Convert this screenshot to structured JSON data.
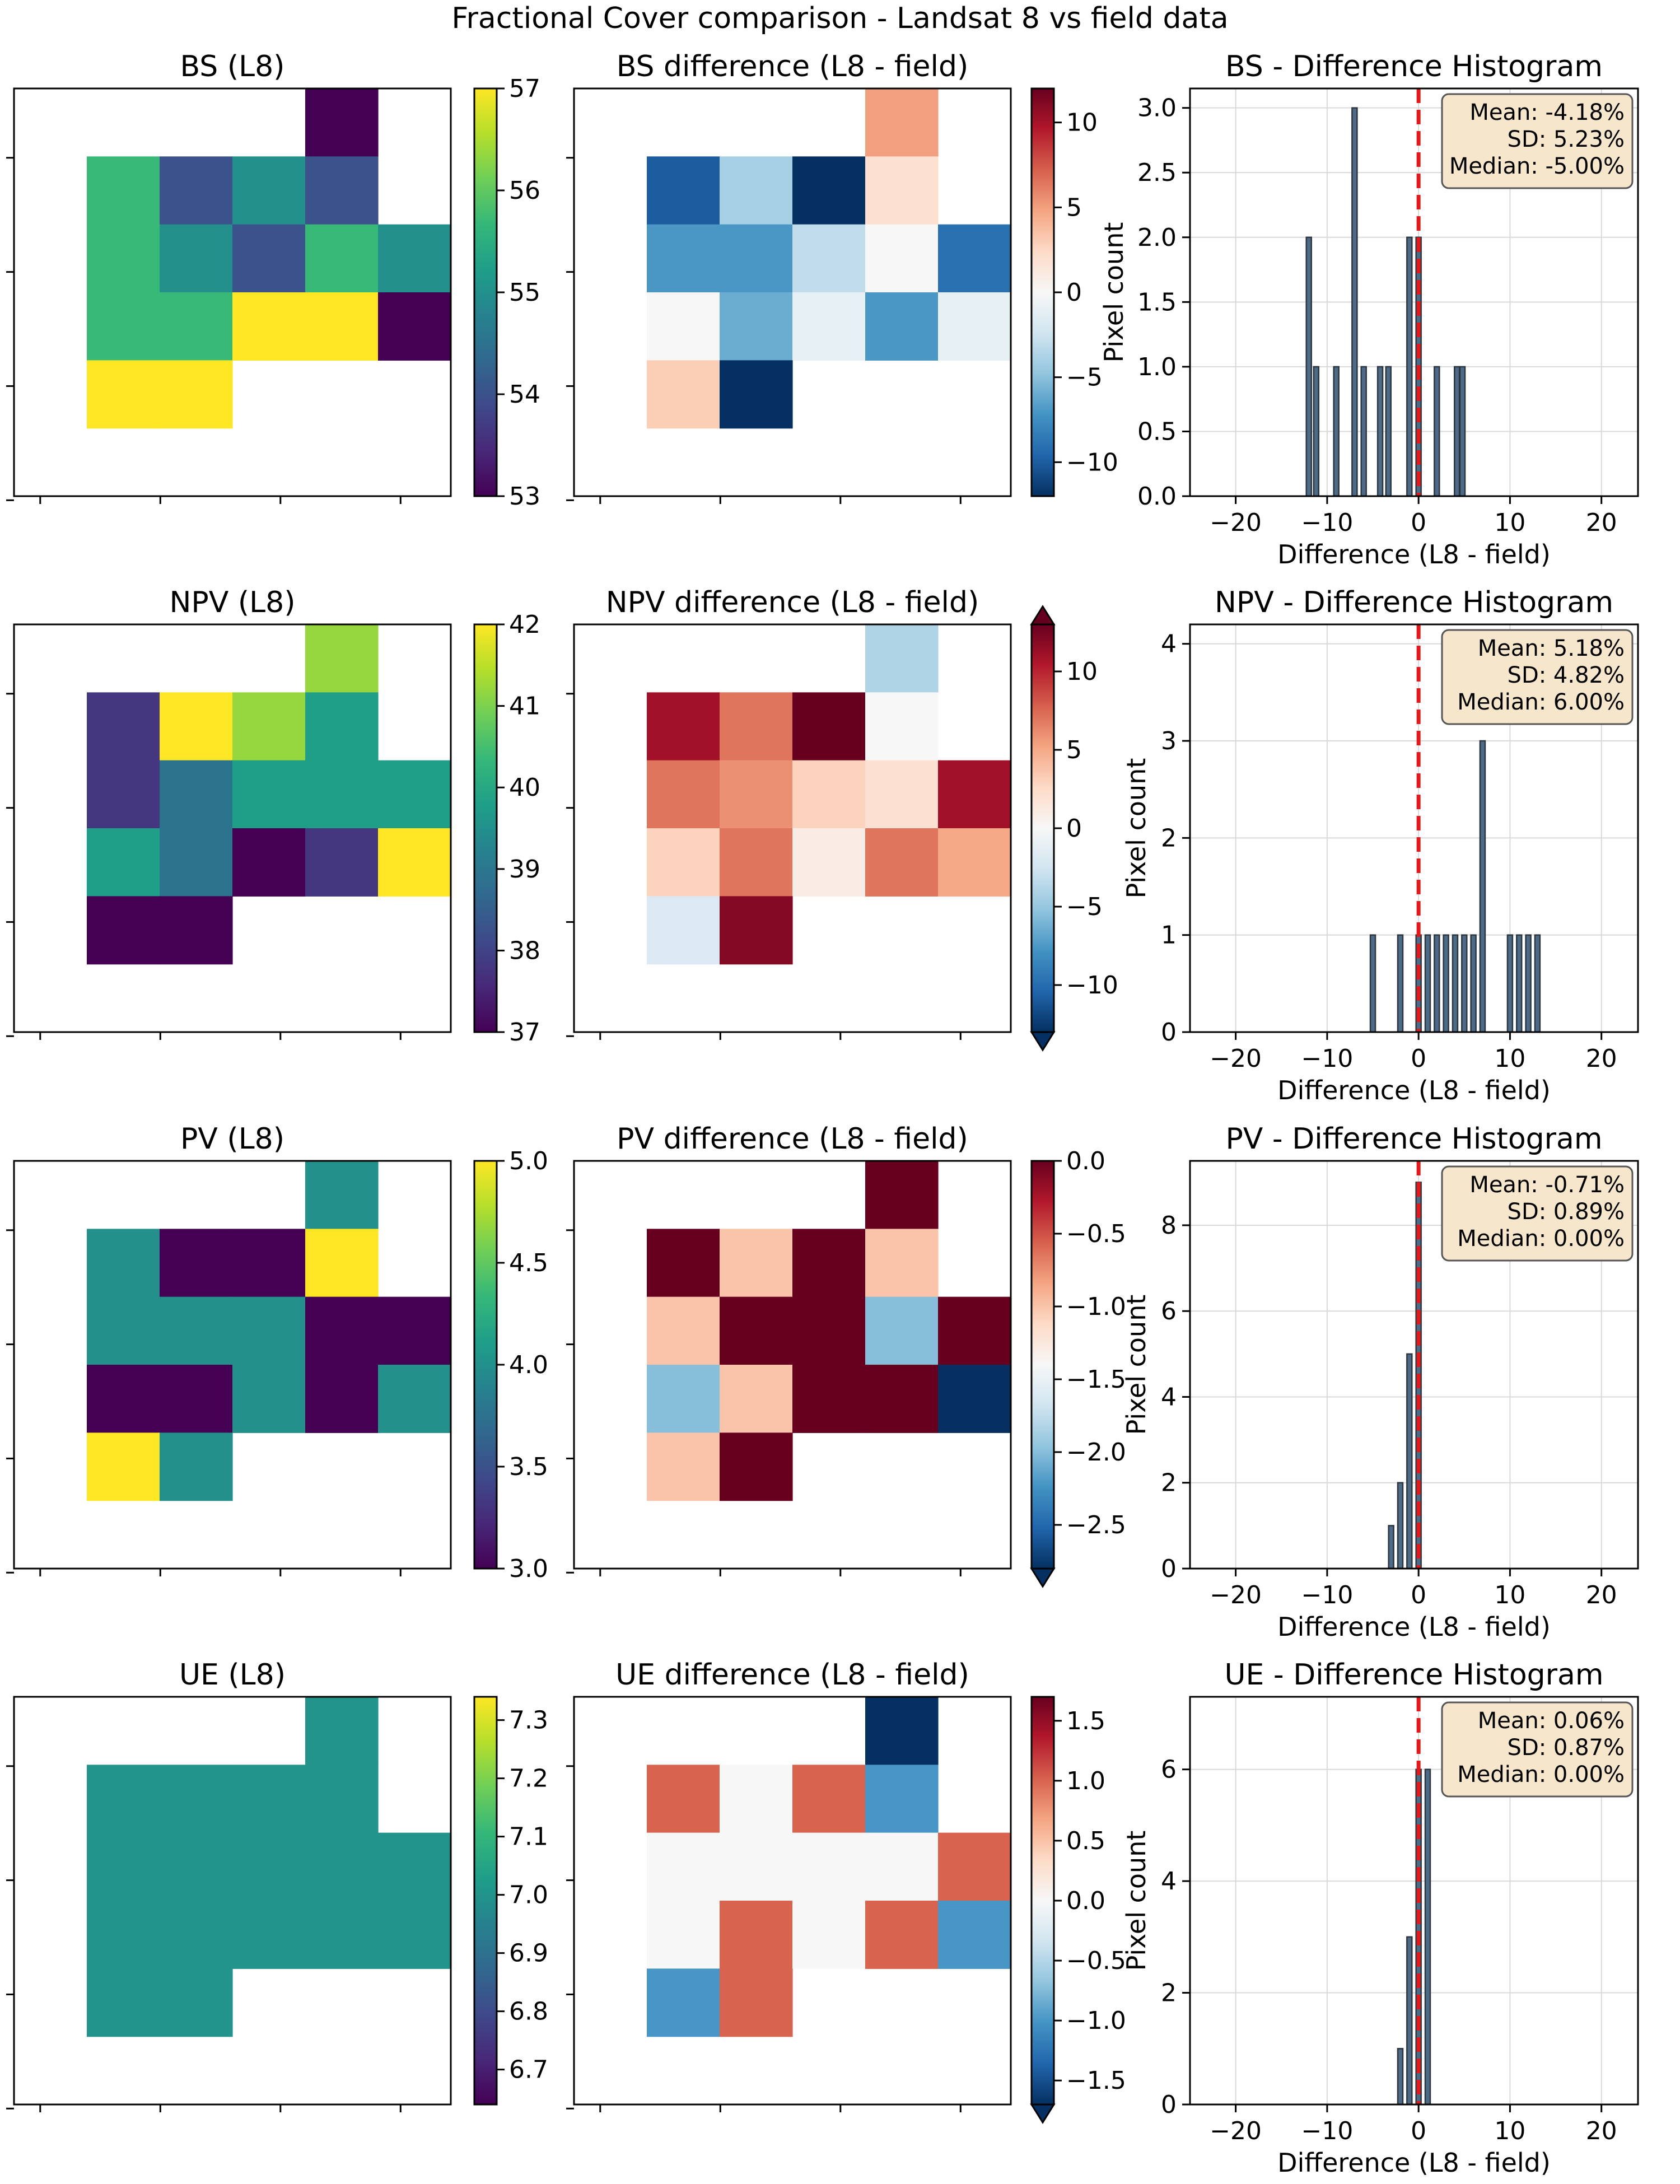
{
  "figure_title": "Fractional Cover comparison - Landsat 8 vs field data",
  "colormaps": {
    "viridis": [
      "#440154",
      "#482878",
      "#3e4a89",
      "#31688e",
      "#26828e",
      "#1f9e89",
      "#35b779",
      "#6ece58",
      "#b5de2b",
      "#fde725"
    ],
    "rdbu_r": [
      "#053061",
      "#2166ac",
      "#4393c3",
      "#92c5de",
      "#d1e5f0",
      "#f7f7f7",
      "#fddbc7",
      "#f4a582",
      "#d6604d",
      "#b2182b",
      "#67001f"
    ],
    "mean_line": "#e31a1c",
    "bar_edge": "#2b3640",
    "stats_box_fill": "#f5e6cc"
  },
  "chart_data": [
    {
      "type": "heatmap",
      "panel": "BS-map",
      "title": "BS (L8)",
      "colormap": "viridis",
      "vmin": 53,
      "vmax": 57,
      "colorbar_ticks": [
        "53",
        "54",
        "55",
        "56",
        "57"
      ],
      "extend": "neither",
      "grid": [
        [
          null,
          null,
          null,
          53,
          null
        ],
        [
          55.7,
          54,
          55,
          54,
          null
        ],
        [
          55.7,
          55,
          54,
          55.7,
          55
        ],
        [
          55.7,
          55.7,
          57,
          57,
          53
        ],
        [
          57,
          57,
          null,
          null,
          null
        ]
      ]
    },
    {
      "type": "heatmap",
      "panel": "BS-diff",
      "title": "BS difference (L8 - field)",
      "colormap": "RdBu_r",
      "vmin": -12,
      "vmax": 12,
      "colorbar_ticks": [
        "−10",
        "−5",
        "0",
        "5",
        "10"
      ],
      "extend": "neither",
      "grid": [
        [
          null,
          null,
          null,
          5,
          null
        ],
        [
          -10,
          -4,
          -12,
          2,
          null
        ],
        [
          -7,
          -7,
          -3,
          0,
          -9
        ],
        [
          0,
          -6,
          -1,
          -7,
          -1
        ],
        [
          3,
          -12,
          null,
          null,
          null
        ]
      ]
    },
    {
      "type": "bar",
      "panel": "BS-hist",
      "title": "BS - Difference Histogram",
      "xlabel": "Difference (L8 - field)",
      "ylabel": "Pixel count",
      "xlim": [
        -25,
        24
      ],
      "ylim": [
        0,
        3.15
      ],
      "xticks": [
        "−20",
        "−10",
        "0",
        "10",
        "20"
      ],
      "yticks": [
        "0.0",
        "0.5",
        "1.0",
        "1.5",
        "2.0",
        "2.5",
        "3.0"
      ],
      "bin_centers": [
        -12,
        -11.2,
        -9,
        -7,
        -6,
        -4.2,
        -3.3,
        -1,
        0,
        2,
        4.2,
        4.8
      ],
      "counts": [
        2,
        1,
        1,
        3,
        1,
        1,
        1,
        2,
        2,
        1,
        1,
        1
      ],
      "mean_line_x": 0,
      "stats": [
        "Mean: -4.18%",
        "SD: 5.23%",
        "Median: -5.00%"
      ]
    },
    {
      "type": "heatmap",
      "panel": "NPV-map",
      "title": "NPV (L8)",
      "colormap": "viridis",
      "vmin": 37,
      "vmax": 42,
      "colorbar_ticks": [
        "37",
        "38",
        "39",
        "40",
        "41",
        "42"
      ],
      "extend": "neither",
      "grid": [
        [
          null,
          null,
          null,
          41.2,
          null
        ],
        [
          37.8,
          42,
          41.2,
          39.8,
          null
        ],
        [
          37.8,
          38.9,
          39.8,
          39.8,
          39.8
        ],
        [
          39.8,
          38.9,
          37,
          37.8,
          42
        ],
        [
          37,
          37,
          null,
          null,
          null
        ]
      ]
    },
    {
      "type": "heatmap",
      "panel": "NPV-diff",
      "title": "NPV difference (L8 - field)",
      "colormap": "RdBu_r",
      "vmin": -13,
      "vmax": 13,
      "colorbar_ticks": [
        "−10",
        "−5",
        "0",
        "5",
        "10"
      ],
      "extend": "both",
      "grid": [
        [
          null,
          null,
          null,
          -4,
          null
        ],
        [
          11,
          7,
          13,
          0,
          null
        ],
        [
          7,
          6,
          3,
          2,
          11
        ],
        [
          3,
          7,
          1,
          7,
          5
        ],
        [
          -2,
          12,
          null,
          null,
          null
        ]
      ]
    },
    {
      "type": "bar",
      "panel": "NPV-hist",
      "title": "NPV - Difference Histogram",
      "xlabel": "Difference (L8 - field)",
      "ylabel": "Pixel count",
      "xlim": [
        -25,
        24
      ],
      "ylim": [
        0,
        4.2
      ],
      "xticks": [
        "−20",
        "−10",
        "0",
        "10",
        "20"
      ],
      "yticks": [
        "0",
        "1",
        "2",
        "3",
        "4"
      ],
      "bin_centers": [
        -5,
        -2,
        0,
        1,
        2,
        3,
        4,
        5,
        6,
        7,
        10,
        11,
        12,
        13
      ],
      "counts": [
        1,
        1,
        1,
        1,
        1,
        1,
        1,
        1,
        1,
        3,
        1,
        1,
        1,
        1
      ],
      "mean_line_x": 0,
      "stats": [
        "Mean: 5.18%",
        "SD: 4.82%",
        "Median: 6.00%"
      ]
    },
    {
      "type": "heatmap",
      "panel": "PV-map",
      "title": "PV (L8)",
      "colormap": "viridis",
      "vmin": 3.0,
      "vmax": 5.0,
      "colorbar_ticks": [
        "3.0",
        "3.5",
        "4.0",
        "4.5",
        "5.0"
      ],
      "extend": "neither",
      "grid": [
        [
          null,
          null,
          null,
          4,
          null
        ],
        [
          4,
          3,
          3,
          5,
          null
        ],
        [
          4,
          4,
          4,
          3,
          3
        ],
        [
          3,
          3,
          4,
          3,
          4
        ],
        [
          5,
          4,
          null,
          null,
          null
        ]
      ]
    },
    {
      "type": "heatmap",
      "panel": "PV-diff",
      "title": "PV difference (L8 - field)",
      "colormap": "RdBu_r",
      "vmin": -2.8,
      "vmax": 0,
      "colorbar_ticks": [
        "−2.5",
        "−2.0",
        "−1.5",
        "−1.0",
        "−0.5",
        "0.0"
      ],
      "extend": "min",
      "grid": [
        [
          null,
          null,
          null,
          0,
          null
        ],
        [
          0,
          -1,
          0,
          -1,
          null
        ],
        [
          -1,
          0,
          0,
          -2,
          0
        ],
        [
          -2,
          -1,
          0,
          0,
          -3
        ],
        [
          -1,
          0,
          null,
          null,
          null
        ]
      ]
    },
    {
      "type": "bar",
      "panel": "PV-hist",
      "title": "PV - Difference Histogram",
      "xlabel": "Difference (L8 - field)",
      "ylabel": "Pixel count",
      "xlim": [
        -25,
        24
      ],
      "ylim": [
        0,
        9.5
      ],
      "xticks": [
        "−20",
        "−10",
        "0",
        "10",
        "20"
      ],
      "yticks": [
        "0",
        "2",
        "4",
        "6",
        "8"
      ],
      "bin_centers": [
        -3,
        -2,
        -1,
        0
      ],
      "counts": [
        1,
        2,
        5,
        9
      ],
      "mean_line_x": 0,
      "stats": [
        "Mean: -0.71%",
        "SD: 0.89%",
        "Median: 0.00%"
      ]
    },
    {
      "type": "heatmap",
      "panel": "UE-map",
      "title": "UE (L8)",
      "colormap": "viridis",
      "vmin": 6.64,
      "vmax": 7.34,
      "colorbar_ticks": [
        "6.7",
        "6.8",
        "6.9",
        "7.0",
        "7.1",
        "7.2",
        "7.3"
      ],
      "extend": "neither",
      "grid": [
        [
          null,
          null,
          null,
          7,
          null
        ],
        [
          7,
          7,
          7,
          7,
          null
        ],
        [
          7,
          7,
          7,
          7,
          7
        ],
        [
          7,
          7,
          7,
          7,
          7
        ],
        [
          7,
          7,
          null,
          null,
          null
        ]
      ]
    },
    {
      "type": "heatmap",
      "panel": "UE-diff",
      "title": "UE difference (L8 - field)",
      "colormap": "RdBu_r",
      "vmin": -1.7,
      "vmax": 1.7,
      "colorbar_ticks": [
        "−1.5",
        "−1.0",
        "−0.5",
        "0.0",
        "0.5",
        "1.0",
        "1.5"
      ],
      "extend": "min",
      "grid": [
        [
          null,
          null,
          null,
          -1.7,
          null
        ],
        [
          1,
          0,
          1,
          -1,
          null
        ],
        [
          0,
          0,
          0,
          0,
          1
        ],
        [
          0,
          1,
          0,
          1,
          -1
        ],
        [
          -1,
          1,
          null,
          null,
          null
        ]
      ]
    },
    {
      "type": "bar",
      "panel": "UE-hist",
      "title": "UE - Difference Histogram",
      "xlabel": "Difference (L8 - field)",
      "ylabel": "Pixel count",
      "xlim": [
        -25,
        24
      ],
      "ylim": [
        0,
        7.3
      ],
      "xticks": [
        "−20",
        "−10",
        "0",
        "10",
        "20"
      ],
      "yticks": [
        "0",
        "2",
        "4",
        "6"
      ],
      "bin_centers": [
        -2,
        -1,
        0,
        1
      ],
      "counts": [
        1,
        3,
        6,
        6
      ],
      "mean_line_x": 0,
      "stats": [
        "Mean: 0.06%",
        "SD: 0.87%",
        "Median: 0.00%"
      ]
    }
  ]
}
